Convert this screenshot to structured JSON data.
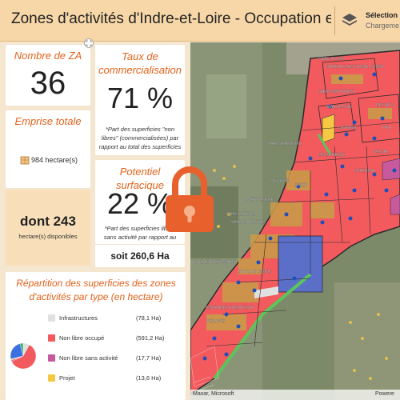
{
  "header": {
    "title": "Zones d'activités d'Indre-et-Loire - Occupation e...",
    "selection_title": "Sélection p",
    "selection_sub": "Chargeme",
    "icon": "layers-icon"
  },
  "kpis": {
    "nombre_za": {
      "label": "Nombre de ZA",
      "value": "36"
    },
    "taux": {
      "label": "Taux de commercialisation",
      "value": "71 %",
      "note": "*Part des superficies \"non libres\" (commercialisées) par rapport au total des superficies"
    },
    "emprise": {
      "label": "Emprise totale",
      "value": "984 hectare(s)",
      "icon": "land-parcel-icon"
    },
    "disponibles": {
      "value": "dont 243",
      "label": "hectare(s) disponibles"
    },
    "potentiel": {
      "label": "Potentiel surfacique",
      "value": "22 %",
      "note": "*Part des superficies libres sans activité par rapport au"
    },
    "soit": {
      "value": "soit 260,6 Ha"
    }
  },
  "repartition": {
    "title": "Répartition des superficies des zones d'activités par type (en hectare)",
    "items": [
      {
        "label": "Infrastructures",
        "value": "(78,1 Ha)",
        "color": "#e0e0e0"
      },
      {
        "label": "Non libre occupé",
        "value": "(591,2 Ha)",
        "color": "#f25a5e"
      },
      {
        "label": "Non libre sans activité",
        "value": "(17,7 Ha)",
        "color": "#c65a9c"
      },
      {
        "label": "Projet",
        "value": "(13,6 Ha)",
        "color": "#f4c842"
      }
    ],
    "pie_extra": [
      {
        "value": 243,
        "color": "#3c6fe0"
      },
      {
        "value": 40,
        "color": "#39b26d"
      }
    ]
  },
  "map": {
    "labels": [
      "SARL FILON",
      "SAPRA ELECTRICAL COMP",
      "SARL MINTURES",
      "MAILLOCHE",
      "DECATH",
      "LA BASE",
      "FRA",
      "SARL JEANETTE",
      "SOCIAL",
      "OCORREIDE",
      "INTERMA",
      "METRON",
      "ORER",
      "MERITOSIDE",
      "SARL LIBERO",
      "SARL CANESSE",
      "SHE ET NETWORKS",
      "SARL AS CONIC",
      "TOURAINE RADIATEUR",
      "ROLAND"
    ],
    "attribution_left": "Maxar, Microsoft",
    "attribution_right": "Powere"
  },
  "overlay": {
    "icon": "lock-icon",
    "color": "#e8602c"
  }
}
